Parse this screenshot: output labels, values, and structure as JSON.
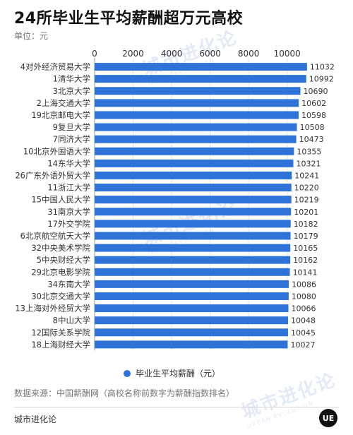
{
  "title": "24所毕业生平均薪酬超万元高校",
  "unit_label": "单位：元",
  "source_note": "数据来源：中国薪酬网（高校名称前数字为薪酬指数排名）",
  "brand": "城市进化论",
  "logo_text": "UE",
  "watermark": {
    "cn": "城市进化论",
    "en": "URBAN EVOLUTION"
  },
  "colors": {
    "bar": "#2f73d9",
    "grid": "#e3e3e3",
    "axis_text": "#333333"
  },
  "chart_data": {
    "type": "bar",
    "orientation": "horizontal",
    "title": "24所毕业生平均薪酬超万元高校",
    "xlabel": "",
    "ylabel": "",
    "xlim": [
      0,
      11000
    ],
    "x_ticks": [
      0,
      2000,
      4000,
      6000,
      8000,
      10000
    ],
    "grid": true,
    "legend_position": "bottom",
    "categories": [
      "4对外经济贸易大学",
      "1清华大学",
      "3北京大学",
      "2上海交通大学",
      "19北京邮电大学",
      "9复旦大学",
      "7同济大学",
      "10北京外国语大学",
      "14东华大学",
      "26广东外语外贸大学",
      "11浙江大学",
      "15中国人民大学",
      "31南京大学",
      "17外交学院",
      "6北京航空航天大学",
      "32中央美术学院",
      "5中央财经大学",
      "29北京电影学院",
      "34东南大学",
      "30北京交通大学",
      "13上海对外经贸大学",
      "8中山大学",
      "12国际关系学院",
      "18上海财经大学"
    ],
    "series": [
      {
        "name": "毕业生平均薪酬（元）",
        "values": [
          11032,
          10992,
          10690,
          10602,
          10598,
          10508,
          10473,
          10355,
          10321,
          10241,
          10220,
          10219,
          10201,
          10182,
          10179,
          10165,
          10162,
          10141,
          10086,
          10080,
          10066,
          10048,
          10045,
          10027
        ]
      }
    ]
  }
}
